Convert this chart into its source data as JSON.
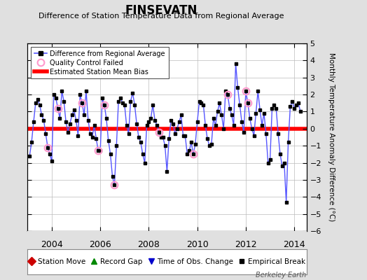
{
  "title": "FINSEVATN",
  "subtitle": "Difference of Station Temperature Data from Regional Average",
  "ylabel_right": "Monthly Temperature Anomaly Difference (°C)",
  "bias": 0.0,
  "xlim": [
    2003.0,
    2014.5
  ],
  "ylim": [
    -6,
    5
  ],
  "yticks": [
    -6,
    -5,
    -4,
    -3,
    -2,
    -1,
    0,
    1,
    2,
    3,
    4,
    5
  ],
  "xticks": [
    2004,
    2006,
    2008,
    2010,
    2012,
    2014
  ],
  "background_color": "#e0e0e0",
  "plot_bg_color": "#ffffff",
  "line_color": "#5555ff",
  "bias_color": "#ff0000",
  "watermark": "Berkeley Earth",
  "months": [
    2003.0833,
    2003.1667,
    2003.25,
    2003.3333,
    2003.4167,
    2003.5,
    2003.5833,
    2003.6667,
    2003.75,
    2003.8333,
    2003.9167,
    2004.0,
    2004.0833,
    2004.1667,
    2004.25,
    2004.3333,
    2004.4167,
    2004.5,
    2004.5833,
    2004.6667,
    2004.75,
    2004.8333,
    2004.9167,
    2005.0,
    2005.0833,
    2005.1667,
    2005.25,
    2005.3333,
    2005.4167,
    2005.5,
    2005.5833,
    2005.6667,
    2005.75,
    2005.8333,
    2005.9167,
    2006.0,
    2006.0833,
    2006.1667,
    2006.25,
    2006.3333,
    2006.4167,
    2006.5,
    2006.5833,
    2006.6667,
    2006.75,
    2006.8333,
    2006.9167,
    2007.0,
    2007.0833,
    2007.1667,
    2007.25,
    2007.3333,
    2007.4167,
    2007.5,
    2007.5833,
    2007.6667,
    2007.75,
    2007.8333,
    2007.9167,
    2008.0,
    2008.0833,
    2008.1667,
    2008.25,
    2008.3333,
    2008.4167,
    2008.5,
    2008.5833,
    2008.6667,
    2008.75,
    2008.8333,
    2008.9167,
    2009.0,
    2009.0833,
    2009.1667,
    2009.25,
    2009.3333,
    2009.4167,
    2009.5,
    2009.5833,
    2009.6667,
    2009.75,
    2009.8333,
    2009.9167,
    2010.0,
    2010.0833,
    2010.1667,
    2010.25,
    2010.3333,
    2010.4167,
    2010.5,
    2010.5833,
    2010.6667,
    2010.75,
    2010.8333,
    2010.9167,
    2011.0,
    2011.0833,
    2011.1667,
    2011.25,
    2011.3333,
    2011.4167,
    2011.5,
    2011.5833,
    2011.6667,
    2011.75,
    2011.8333,
    2011.9167,
    2012.0,
    2012.0833,
    2012.1667,
    2012.25,
    2012.3333,
    2012.4167,
    2012.5,
    2012.5833,
    2012.6667,
    2012.75,
    2012.8333,
    2012.9167,
    2013.0,
    2013.0833,
    2013.1667,
    2013.25,
    2013.3333,
    2013.4167,
    2013.5,
    2013.5833,
    2013.6667,
    2013.75,
    2013.8333,
    2013.9167,
    2014.0,
    2014.0833,
    2014.1667,
    2014.25
  ],
  "values": [
    -1.6,
    -0.8,
    0.4,
    1.5,
    1.7,
    1.4,
    0.8,
    0.5,
    -0.3,
    -1.1,
    -1.5,
    -1.9,
    2.0,
    1.8,
    1.2,
    0.6,
    2.2,
    1.6,
    0.4,
    -0.2,
    0.3,
    0.8,
    1.1,
    0.5,
    -0.4,
    2.0,
    1.5,
    0.8,
    2.2,
    0.5,
    -0.3,
    -0.5,
    0.2,
    -0.6,
    -1.3,
    -1.3,
    1.8,
    1.4,
    0.6,
    -0.7,
    -1.5,
    -2.8,
    -3.3,
    -1.0,
    1.6,
    1.8,
    1.5,
    1.4,
    0.2,
    -0.3,
    1.6,
    2.1,
    1.4,
    0.3,
    -0.5,
    -0.8,
    -1.5,
    -2.0,
    0.2,
    0.4,
    0.6,
    1.4,
    0.5,
    0.2,
    -0.2,
    -0.5,
    -0.5,
    -1.0,
    -2.5,
    -0.6,
    0.5,
    0.3,
    -0.3,
    0.0,
    0.4,
    0.8,
    -0.4,
    -0.4,
    -1.5,
    -1.3,
    -0.8,
    -1.5,
    -0.9,
    0.4,
    1.6,
    1.5,
    1.4,
    0.2,
    -0.6,
    -1.0,
    -0.9,
    0.6,
    0.2,
    1.0,
    1.5,
    0.8,
    0.0,
    2.2,
    2.0,
    1.2,
    0.8,
    0.2,
    3.8,
    2.4,
    1.4,
    0.4,
    -0.2,
    2.2,
    1.5,
    0.6,
    0.0,
    -0.4,
    0.9,
    2.2,
    1.1,
    0.2,
    0.9,
    -0.3,
    -2.0,
    -1.8,
    1.2,
    1.4,
    1.2,
    -0.3,
    -1.5,
    -2.2,
    -2.0,
    -4.3,
    -0.8,
    1.3,
    1.6,
    1.2,
    1.4,
    1.5,
    1.0
  ],
  "qc_failed_indices": [
    9,
    14,
    26,
    34,
    37,
    42,
    64,
    81,
    98,
    107,
    108
  ],
  "qc_failed_color": "#ff99cc"
}
